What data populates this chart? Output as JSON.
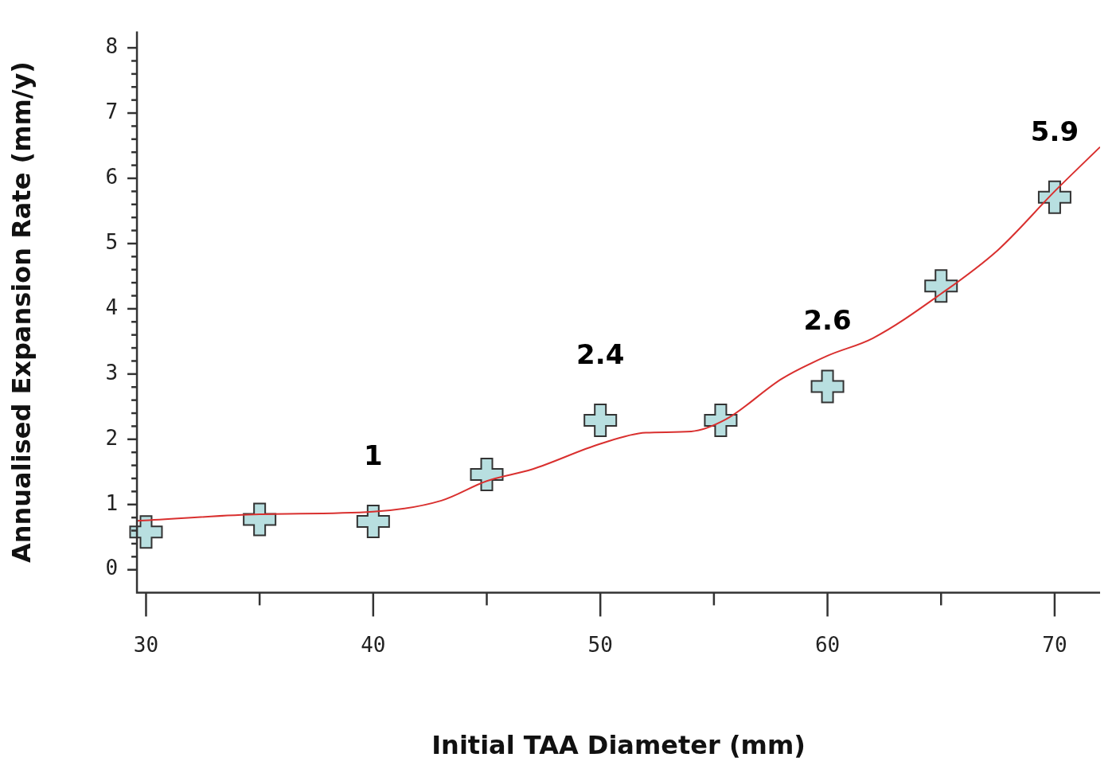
{
  "chart_data": {
    "type": "scatter",
    "xlabel": "Initial TAA Diameter (mm)",
    "ylabel": "Annualised Expansion Rate (mm/y)",
    "xlim": [
      29.6,
      72
    ],
    "ylim": [
      -0.35,
      8.25
    ],
    "xticks": [
      30,
      {
        "value": 35,
        "label": null
      },
      40,
      {
        "value": 45,
        "label": null
      },
      50,
      {
        "value": 55,
        "label": null
      },
      60,
      {
        "value": 65,
        "label": null
      },
      70
    ],
    "yticks": [
      0,
      {
        "value": 0.2,
        "label": null
      },
      {
        "value": 0.4,
        "label": null
      },
      {
        "value": 0.6,
        "label": null
      },
      {
        "value": 0.8,
        "label": null
      },
      1,
      {
        "value": 1.2,
        "label": null
      },
      {
        "value": 1.4,
        "label": null
      },
      {
        "value": 1.6,
        "label": null
      },
      {
        "value": 1.8,
        "label": null
      },
      2,
      {
        "value": 2.2,
        "label": null
      },
      {
        "value": 2.4,
        "label": null
      },
      {
        "value": 2.6,
        "label": null
      },
      {
        "value": 2.8,
        "label": null
      },
      3,
      {
        "value": 3.2,
        "label": null
      },
      {
        "value": 3.4,
        "label": null
      },
      {
        "value": 3.6,
        "label": null
      },
      {
        "value": 3.8,
        "label": null
      },
      4,
      {
        "value": 4.2,
        "label": null
      },
      {
        "value": 4.4,
        "label": null
      },
      {
        "value": 4.6,
        "label": null
      },
      {
        "value": 4.8,
        "label": null
      },
      5,
      {
        "value": 5.2,
        "label": null
      },
      {
        "value": 5.4,
        "label": null
      },
      {
        "value": 5.6,
        "label": null
      },
      {
        "value": 5.8,
        "label": null
      },
      6,
      {
        "value": 6.2,
        "label": null
      },
      {
        "value": 6.4,
        "label": null
      },
      {
        "value": 6.6,
        "label": null
      },
      {
        "value": 6.8,
        "label": null
      },
      7,
      {
        "value": 7.2,
        "label": null
      },
      {
        "value": 7.4,
        "label": null
      },
      {
        "value": 7.6,
        "label": null
      },
      {
        "value": 7.8,
        "label": null
      },
      8
    ],
    "grid": false,
    "legend": false,
    "marker": "cross",
    "series": [
      {
        "color": "#b8dfe0",
        "x": [
          30,
          35,
          40,
          45,
          50,
          55.3,
          60,
          65,
          70
        ],
        "values": [
          0.58,
          0.77,
          0.74,
          1.46,
          2.29,
          2.29,
          2.81,
          4.35,
          5.71
        ]
      },
      {
        "type": "line",
        "marker": "none",
        "color": "#d9302f",
        "x": [
          29.6,
          35,
          40,
          43,
          45,
          47,
          50,
          52,
          54,
          55.5,
          58,
          60,
          62,
          65,
          67.5,
          70,
          72
        ],
        "values": [
          0.75,
          0.85,
          0.89,
          1.06,
          1.36,
          1.54,
          1.93,
          2.1,
          2.12,
          2.3,
          2.93,
          3.28,
          3.55,
          4.23,
          4.9,
          5.8,
          6.48
        ]
      }
    ],
    "annotations": [
      {
        "text": "1",
        "x": 40,
        "y": 0.74
      },
      {
        "text": "2.4",
        "x": 50,
        "y": 2.29
      },
      {
        "text": "2.6",
        "x": 60,
        "y": 2.81
      },
      {
        "text": "5.9",
        "x": 70,
        "y": 5.71
      }
    ]
  }
}
